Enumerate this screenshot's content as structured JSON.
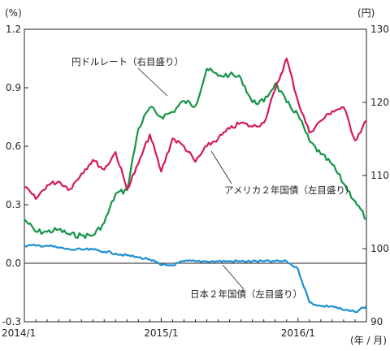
{
  "chart_data": [
    {
      "type": "line",
      "title": "",
      "left_axis": {
        "unit": "(%)",
        "ylim": [
          -0.3,
          1.2
        ],
        "ticks": [
          "1.2",
          "0.9",
          "0.6",
          "0.3",
          "0.0",
          "-0.3"
        ]
      },
      "right_axis": {
        "unit": "(円)",
        "ylim": [
          90,
          130
        ],
        "ticks": [
          "130",
          "120",
          "110",
          "100",
          "90"
        ]
      },
      "x_axis": {
        "unit": "(年 / 月)",
        "start": "2014/1",
        "end": "2016/7",
        "ticks": [
          "2014/1",
          "2015/1",
          "2016/1"
        ]
      },
      "grid": false,
      "zero_line": 0.0,
      "series": [
        {
          "name": "円ドルレート（右目盛り）",
          "axis": "right",
          "color": "#159447",
          "x": [
            "2014/1",
            "2014/2",
            "2014/3",
            "2014/4",
            "2014/5",
            "2014/6",
            "2014/7",
            "2014/8",
            "2014/9",
            "2014/10",
            "2014/11",
            "2014/12",
            "2015/1",
            "2015/2",
            "2015/3",
            "2015/4",
            "2015/5",
            "2015/6",
            "2015/7",
            "2015/8",
            "2015/9",
            "2015/10",
            "2015/11",
            "2015/12",
            "2016/1",
            "2016/2",
            "2016/3",
            "2016/4",
            "2016/5",
            "2016/6",
            "2016/7"
          ],
          "values": [
            104.0,
            102.3,
            102.3,
            102.6,
            101.9,
            101.8,
            101.8,
            103.5,
            107.5,
            108.0,
            116.4,
            119.3,
            118.0,
            118.7,
            120.2,
            119.5,
            124.6,
            123.6,
            123.8,
            123.3,
            120.0,
            120.1,
            122.6,
            120.0,
            118.3,
            114.7,
            112.9,
            111.5,
            108.9,
            106.5,
            104.0
          ]
        },
        {
          "name": "アメリカ２年国債（左目盛り）",
          "axis": "left",
          "color": "#d6185f",
          "x": [
            "2014/1",
            "2014/2",
            "2014/3",
            "2014/4",
            "2014/5",
            "2014/6",
            "2014/7",
            "2014/8",
            "2014/9",
            "2014/10",
            "2014/11",
            "2014/12",
            "2015/1",
            "2015/2",
            "2015/3",
            "2015/4",
            "2015/5",
            "2015/6",
            "2015/7",
            "2015/8",
            "2015/9",
            "2015/10",
            "2015/11",
            "2015/12",
            "2016/1",
            "2016/2",
            "2016/3",
            "2016/4",
            "2016/5",
            "2016/6",
            "2016/7"
          ],
          "values": [
            0.39,
            0.33,
            0.4,
            0.42,
            0.38,
            0.46,
            0.53,
            0.48,
            0.57,
            0.38,
            0.51,
            0.66,
            0.47,
            0.64,
            0.6,
            0.52,
            0.6,
            0.64,
            0.69,
            0.72,
            0.7,
            0.72,
            0.89,
            1.05,
            0.83,
            0.67,
            0.73,
            0.78,
            0.8,
            0.63,
            0.73
          ]
        },
        {
          "name": "日本２年国債（左目盛り）",
          "axis": "left",
          "color": "#1c8fd3",
          "x": [
            "2014/1",
            "2014/2",
            "2014/3",
            "2014/4",
            "2014/5",
            "2014/6",
            "2014/7",
            "2014/8",
            "2014/9",
            "2014/10",
            "2014/11",
            "2014/12",
            "2015/1",
            "2015/2",
            "2015/3",
            "2015/4",
            "2015/5",
            "2015/6",
            "2015/7",
            "2015/8",
            "2015/9",
            "2015/10",
            "2015/11",
            "2015/12",
            "2016/1",
            "2016/2",
            "2016/3",
            "2016/4",
            "2016/5",
            "2016/6",
            "2016/7"
          ],
          "values": [
            0.09,
            0.09,
            0.09,
            0.08,
            0.07,
            0.07,
            0.07,
            0.06,
            0.05,
            0.04,
            0.03,
            0.02,
            -0.01,
            -0.01,
            0.01,
            0.01,
            0.01,
            0.01,
            0.01,
            0.01,
            0.01,
            0.01,
            0.01,
            0.01,
            -0.03,
            -0.2,
            -0.22,
            -0.22,
            -0.24,
            -0.25,
            -0.22
          ]
        }
      ],
      "annotations": [
        {
          "text": "円ドルレート（右目盛り）",
          "target": "円ドルレート（右目盛り）"
        },
        {
          "text": "アメリカ２年国債（左目盛り）",
          "target": "アメリカ２年国債（左目盛り）"
        },
        {
          "text": "日本２年国債（左目盛り）",
          "target": "日本２年国債（左目盛り）"
        }
      ]
    }
  ]
}
